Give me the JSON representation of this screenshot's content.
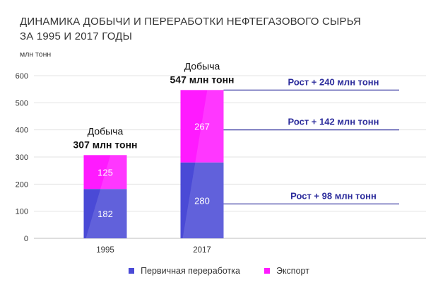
{
  "title": {
    "line1": "ДИНАМИКА ДОБЫЧИ И ПЕРЕРАБОТКИ НЕФТЕГАЗОВОГО СЫРЬЯ",
    "line2": "ЗА 1995 И 2017 ГОДЫ"
  },
  "chart_data": {
    "type": "bar",
    "stacked": true,
    "categories": [
      "1995",
      "2017"
    ],
    "series": [
      {
        "name": "Первичная переработка",
        "values": [
          182,
          280
        ],
        "color": "#4a4ad6",
        "label_color": "#ffffff"
      },
      {
        "name": "Экспорт",
        "values": [
          125,
          267
        ],
        "color": "#ff1aff",
        "label_color": "#ffffff"
      }
    ],
    "totals": [
      {
        "line1": "Добыча",
        "line2": "307 млн тонн"
      },
      {
        "line1": "Добыча",
        "line2": "547 млн тонн"
      }
    ],
    "growth_annotations": [
      {
        "text": "Рост + 240 млн тонн",
        "value": 547
      },
      {
        "text": "Рост + 142 млн тонн",
        "value": 400
      },
      {
        "text": "Рост + 98 млн тонн",
        "value": 127
      }
    ],
    "ylabel": "млн тонн",
    "ylim": [
      0,
      600
    ],
    "yticks": [
      0,
      100,
      200,
      300,
      400,
      500,
      600
    ],
    "grid": true,
    "legend_position": "bottom"
  },
  "colors": {
    "annotation": "#2c2c9c",
    "grid": "#e3e3e3",
    "axis_text": "#333333"
  }
}
